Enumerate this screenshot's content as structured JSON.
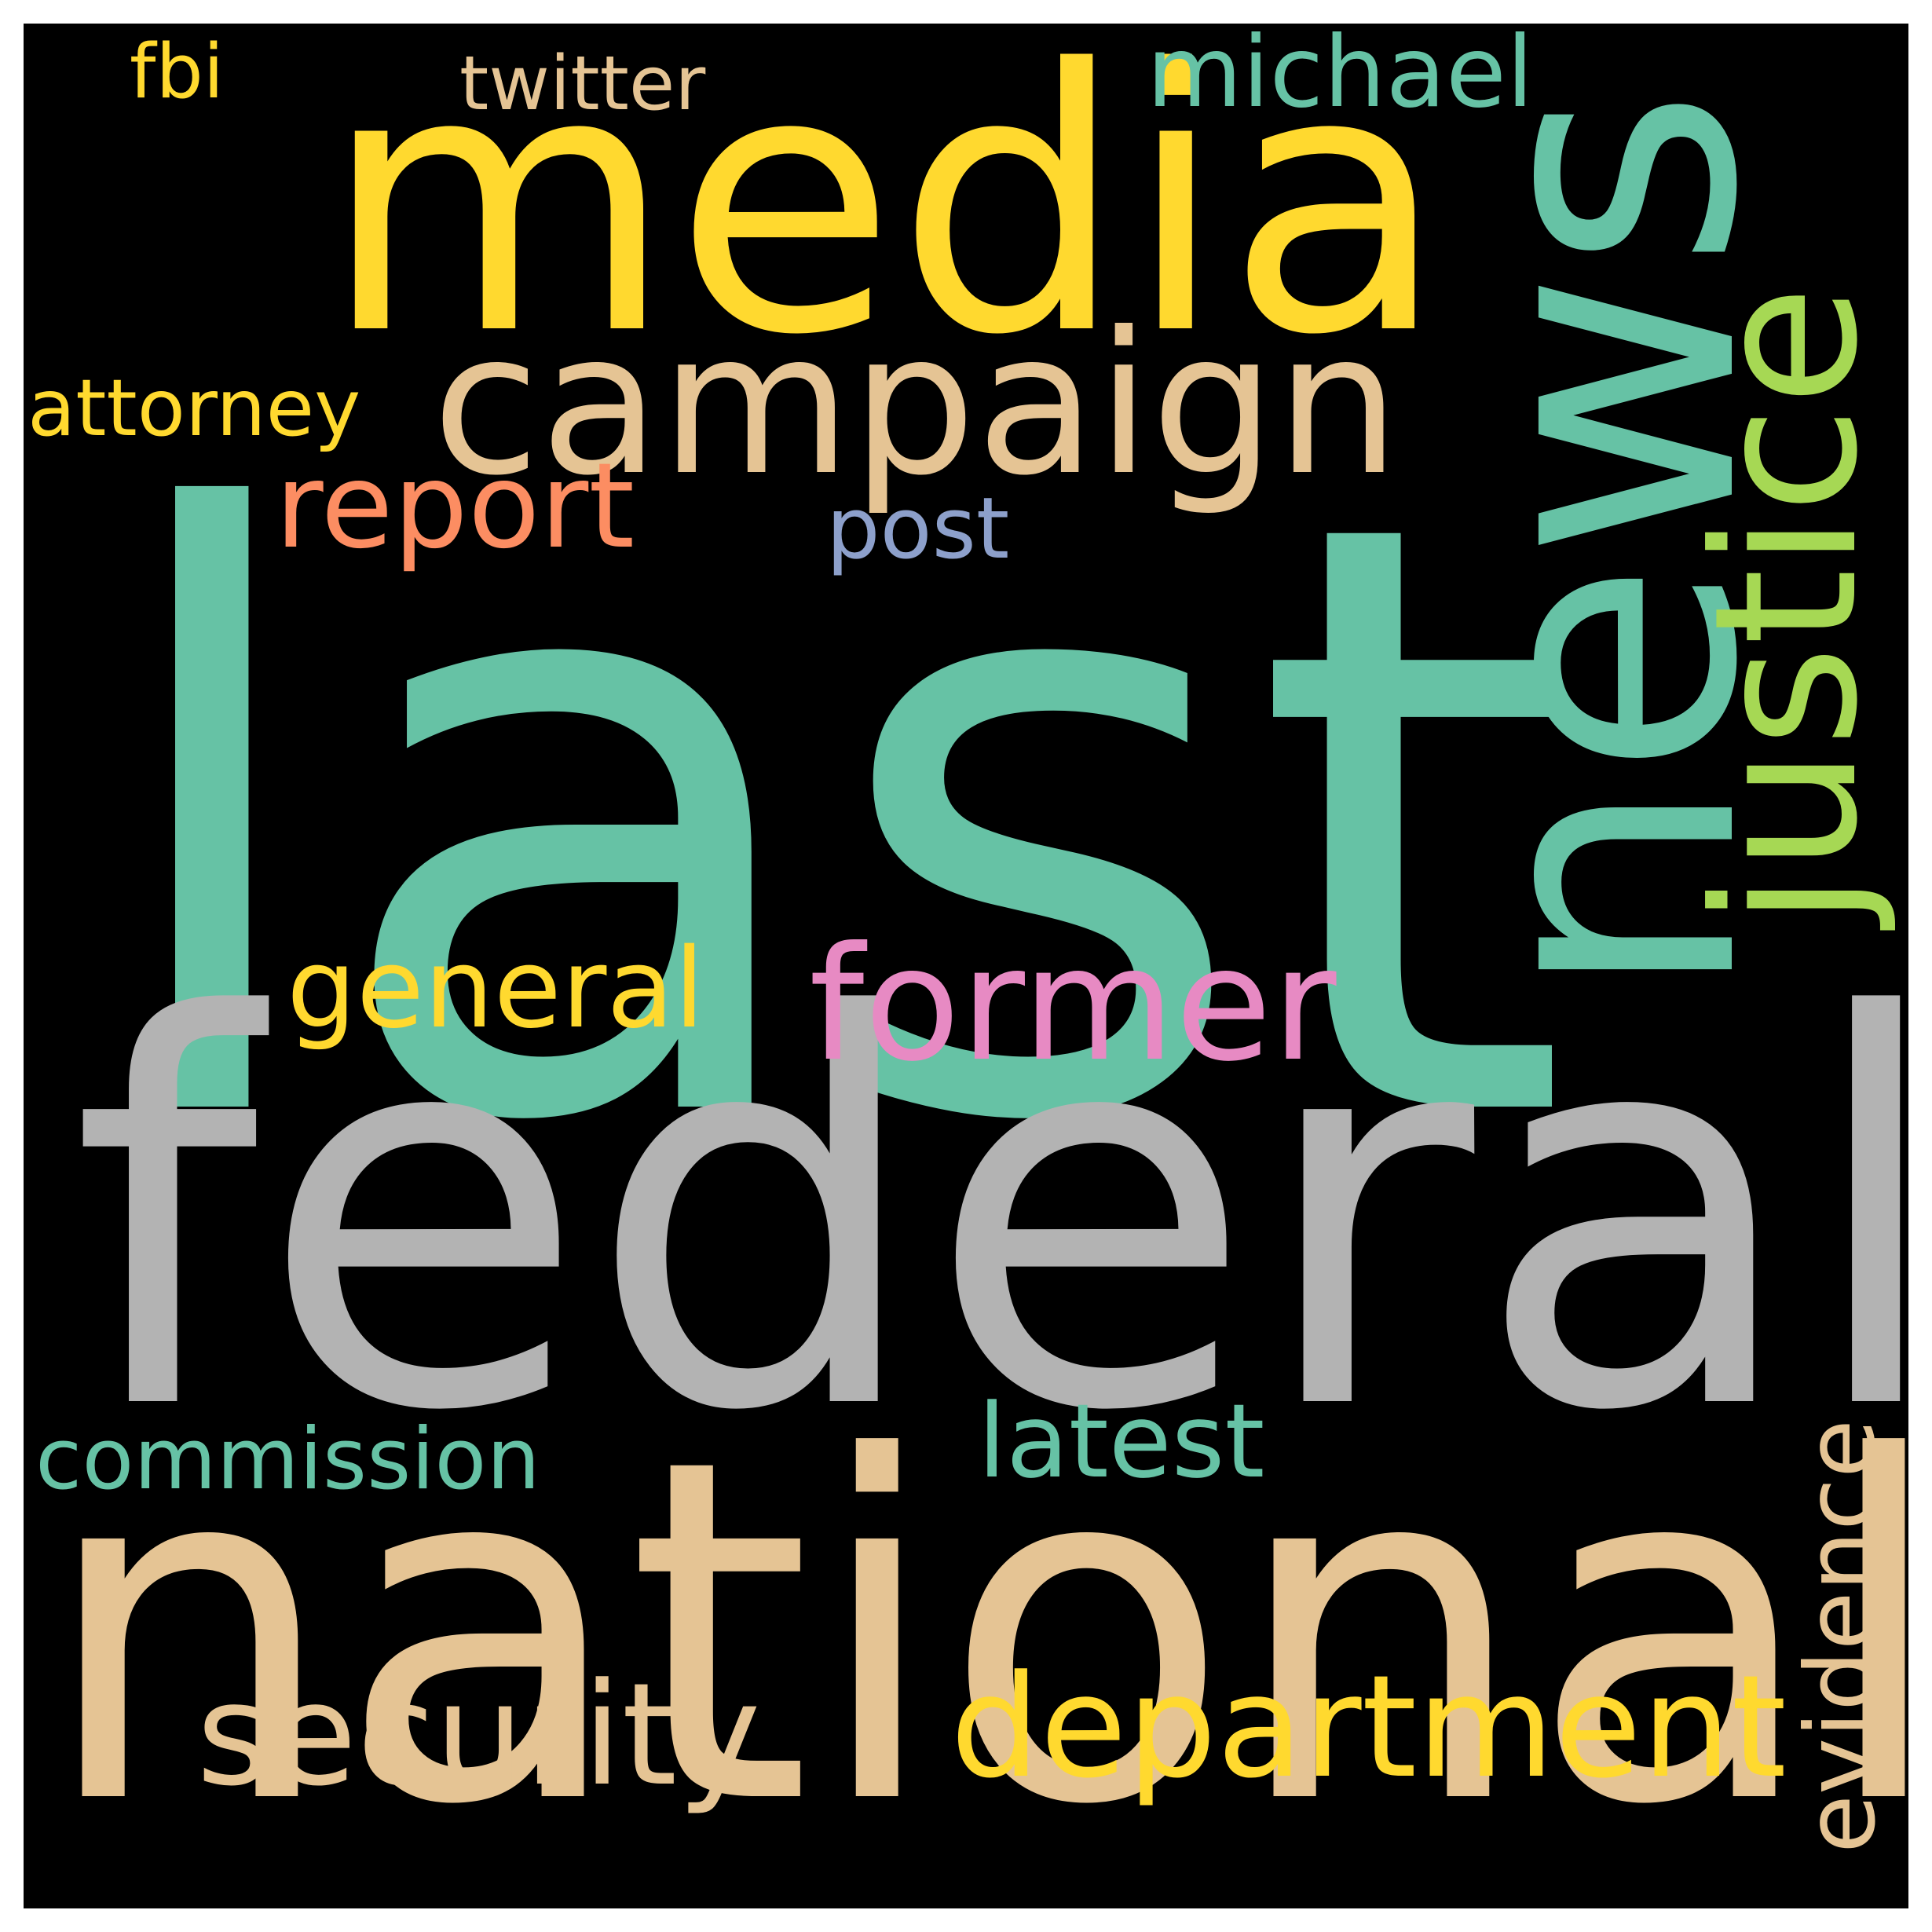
{
  "words": {
    "last": {
      "text": "last",
      "color": "#66c2a5"
    },
    "federal": {
      "text": "federal",
      "color": "#b3b3b3"
    },
    "national": {
      "text": "national",
      "color": "#e5c494"
    },
    "media": {
      "text": "media",
      "color": "#ffd92f"
    },
    "news": {
      "text": "news",
      "color": "#66c2a5"
    },
    "campaign": {
      "text": "campaign",
      "color": "#e5c494"
    },
    "justice": {
      "text": "justice",
      "color": "#a6d854"
    },
    "former": {
      "text": "former",
      "color": "#e78ac3"
    },
    "department": {
      "text": "department",
      "color": "#ffd92f"
    },
    "security": {
      "text": "security",
      "color": "#e5c494"
    },
    "report": {
      "text": "report",
      "color": "#fc8d62"
    },
    "general": {
      "text": "general",
      "color": "#ffd92f"
    },
    "latest": {
      "text": "latest",
      "color": "#66c2a5"
    },
    "michael": {
      "text": "michael",
      "color": "#66c2a5"
    },
    "commission": {
      "text": "commission",
      "color": "#66c2a5"
    },
    "attorney": {
      "text": "attorney",
      "color": "#ffd92f"
    },
    "post": {
      "text": "post",
      "color": "#8da0cb"
    },
    "twitter": {
      "text": "twitter",
      "color": "#e5c494"
    },
    "fbi": {
      "text": "fbi",
      "color": "#ffd92f"
    },
    "evidence": {
      "text": "evidence",
      "color": "#e5c494"
    }
  }
}
